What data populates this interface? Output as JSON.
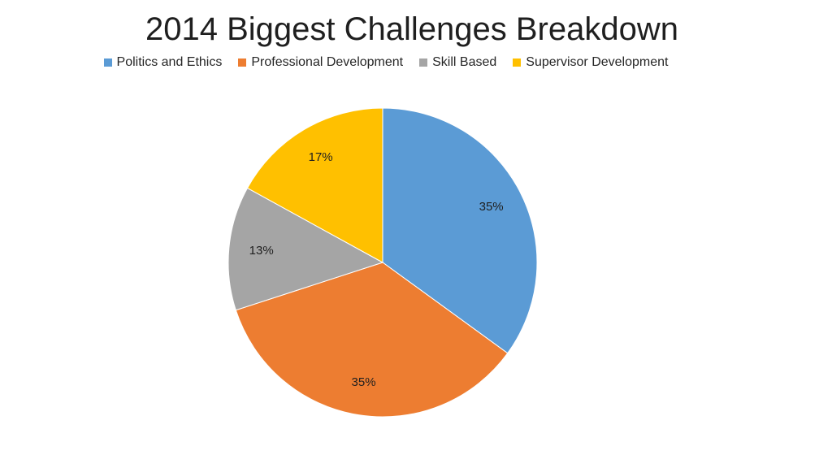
{
  "chart_data": {
    "type": "pie",
    "title": "2014 Biggest Challenges Breakdown",
    "legend_position": "top",
    "categories": [
      "Politics and Ethics",
      "Professional Development",
      "Skill Based",
      "Supervisor Development"
    ],
    "values": [
      35,
      35,
      13,
      17
    ],
    "labels": [
      "35%",
      "35%",
      "13%",
      "17%"
    ],
    "colors": [
      "#5b9bd5",
      "#ed7d31",
      "#a5a5a5",
      "#ffc000"
    ]
  }
}
